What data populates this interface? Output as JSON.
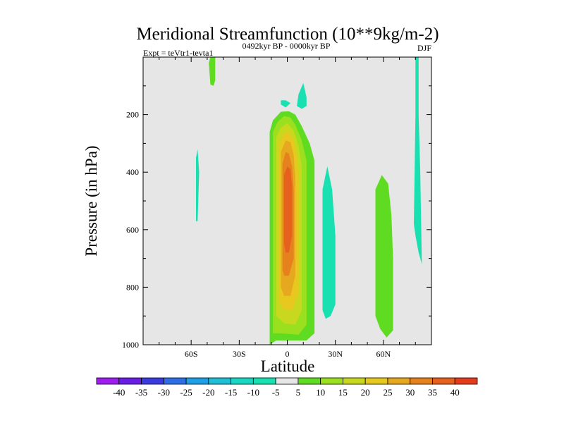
{
  "chart_data": {
    "type": "contour",
    "title": "Meridional Streamfunction (10**9kg/m-2)",
    "left_string": "Expt = teVtr1-tevta1",
    "center_string": "0492kyr BP - 0000kyr BP",
    "right_string": "DJF",
    "xlabel": "Latitude",
    "ylabel": "Pressure (in hPa)",
    "xlim": [
      -90,
      90
    ],
    "ylim": [
      1000,
      0
    ],
    "xticks": [
      {
        "value": -60,
        "label": "60S"
      },
      {
        "value": -30,
        "label": "30S"
      },
      {
        "value": 0,
        "label": "0"
      },
      {
        "value": 30,
        "label": "30N"
      },
      {
        "value": 60,
        "label": "60N"
      }
    ],
    "yticks": [
      {
        "value": 200,
        "label": "200"
      },
      {
        "value": 400,
        "label": "400"
      },
      {
        "value": 600,
        "label": "600"
      },
      {
        "value": 800,
        "label": "800"
      },
      {
        "value": 1000,
        "label": "1000"
      }
    ],
    "background_color": "#e6e6e6",
    "colorbar": {
      "labels": [
        "-40",
        "-35",
        "-30",
        "-25",
        "-20",
        "-15",
        "-10",
        "-5",
        "5",
        "10",
        "15",
        "20",
        "25",
        "30",
        "35",
        "40"
      ],
      "colors": [
        "#9e1ef0",
        "#6a1ee6",
        "#3b3be0",
        "#2f6fe6",
        "#1f9fe6",
        "#1fbfd6",
        "#19d7c2",
        "#19e0b0",
        "#e6e6e6",
        "#5fdc22",
        "#9be01f",
        "#c8d81e",
        "#e6c81e",
        "#e6a81e",
        "#e6821e",
        "#e6601e",
        "#e63c1e"
      ]
    },
    "regions": [
      {
        "name": "psi-positive-equatorial-cell",
        "level": 5,
        "color": "#5fdc22",
        "points": [
          [
            -11,
            1000
          ],
          [
            -11,
            260
          ],
          [
            -9,
            220
          ],
          [
            -4,
            190
          ],
          [
            1,
            188
          ],
          [
            5,
            200
          ],
          [
            9,
            240
          ],
          [
            14,
            300
          ],
          [
            17,
            360
          ],
          [
            17,
            960
          ],
          [
            12,
            985
          ],
          [
            -7,
            985
          ]
        ]
      },
      {
        "name": "psi-positive-equatorial-cell",
        "level": 10,
        "color": "#9be01f",
        "points": [
          [
            -9,
            960
          ],
          [
            -9,
            260
          ],
          [
            -6,
            225
          ],
          [
            -2,
            205
          ],
          [
            2,
            210
          ],
          [
            5,
            235
          ],
          [
            9,
            290
          ],
          [
            12,
            360
          ],
          [
            12,
            930
          ],
          [
            7,
            965
          ],
          [
            -4,
            960
          ]
        ]
      },
      {
        "name": "psi-positive-equatorial-cell",
        "level": 15,
        "color": "#c8d81e",
        "points": [
          [
            -7,
            900
          ],
          [
            -7,
            280
          ],
          [
            -4,
            245
          ],
          [
            0,
            230
          ],
          [
            4,
            255
          ],
          [
            7,
            310
          ],
          [
            9,
            380
          ],
          [
            9,
            880
          ],
          [
            5,
            930
          ],
          [
            -2,
            925
          ]
        ]
      },
      {
        "name": "psi-positive-equatorial-cell",
        "level": 20,
        "color": "#e6c81e",
        "points": [
          [
            -5,
            850
          ],
          [
            -5,
            300
          ],
          [
            -2,
            265
          ],
          [
            1,
            260
          ],
          [
            4,
            290
          ],
          [
            6,
            350
          ],
          [
            7,
            420
          ],
          [
            7,
            820
          ],
          [
            3,
            880
          ],
          [
            -2,
            880
          ]
        ]
      },
      {
        "name": "psi-positive-equatorial-cell",
        "level": 25,
        "color": "#e6a81e",
        "points": [
          [
            -4,
            800
          ],
          [
            -4,
            330
          ],
          [
            -1,
            290
          ],
          [
            2,
            295
          ],
          [
            4,
            340
          ],
          [
            5,
            420
          ],
          [
            5,
            760
          ],
          [
            2,
            830
          ],
          [
            -2,
            830
          ]
        ]
      },
      {
        "name": "psi-positive-equatorial-cell",
        "level": 30,
        "color": "#e6821e",
        "points": [
          [
            -3,
            740
          ],
          [
            -3,
            370
          ],
          [
            -1,
            330
          ],
          [
            1,
            335
          ],
          [
            3,
            380
          ],
          [
            4,
            460
          ],
          [
            4,
            700
          ],
          [
            1,
            760
          ],
          [
            -2,
            760
          ]
        ]
      },
      {
        "name": "psi-positive-equatorial-cell",
        "level": 35,
        "color": "#e6601e",
        "points": [
          [
            -2,
            650
          ],
          [
            -2,
            410
          ],
          [
            0,
            380
          ],
          [
            2,
            390
          ],
          [
            3,
            450
          ],
          [
            3,
            620
          ],
          [
            1,
            680
          ],
          [
            -1,
            680
          ]
        ]
      },
      {
        "name": "psi-positive-cell-60n",
        "level": 5,
        "color": "#5fdc22",
        "points": [
          [
            55,
            900
          ],
          [
            55,
            460
          ],
          [
            59,
            410
          ],
          [
            63,
            440
          ],
          [
            65,
            550
          ],
          [
            66,
            700
          ],
          [
            66,
            950
          ],
          [
            62,
            975
          ],
          [
            58,
            945
          ]
        ]
      },
      {
        "name": "psi-positive-cell-high-sh",
        "level": 5,
        "color": "#5fdc22",
        "points": [
          [
            -49,
            20
          ],
          [
            -48,
            0
          ],
          [
            -45,
            0
          ],
          [
            -45,
            80
          ],
          [
            -46,
            100
          ],
          [
            -48,
            95
          ]
        ]
      },
      {
        "name": "psi-negative-cell-30n",
        "level": -5,
        "color": "#19e0b0",
        "points": [
          [
            22,
            880
          ],
          [
            22,
            460
          ],
          [
            25,
            380
          ],
          [
            28,
            460
          ],
          [
            30,
            620
          ],
          [
            30,
            860
          ],
          [
            27,
            900
          ],
          [
            24,
            910
          ]
        ]
      },
      {
        "name": "psi-negative-cell-near-eq",
        "level": -5,
        "color": "#19e0b0",
        "points": [
          [
            6,
            170
          ],
          [
            7,
            130
          ],
          [
            10,
            90
          ],
          [
            12,
            140
          ],
          [
            12,
            170
          ],
          [
            9,
            180
          ]
        ]
      },
      {
        "name": "psi-negative-cell-near-eq-small",
        "level": -5,
        "color": "#19e0b0",
        "points": [
          [
            -4,
            150
          ],
          [
            -1,
            150
          ],
          [
            2,
            160
          ],
          [
            -1,
            175
          ],
          [
            -4,
            165
          ]
        ]
      },
      {
        "name": "psi-negative-cell-60s",
        "level": -5,
        "color": "#19e0b0",
        "points": [
          [
            -57,
            570
          ],
          [
            -57,
            350
          ],
          [
            -56,
            320
          ],
          [
            -55,
            400
          ],
          [
            -56,
            570
          ]
        ]
      },
      {
        "name": "psi-negative-cell-high-nh",
        "level": -5,
        "color": "#19e0b0",
        "points": [
          [
            79,
            580
          ],
          [
            80,
            200
          ],
          [
            80,
            0
          ],
          [
            82,
            0
          ],
          [
            82,
            200
          ],
          [
            83,
            400
          ],
          [
            84,
            720
          ],
          [
            82,
            680
          ],
          [
            80,
            620
          ]
        ]
      }
    ]
  }
}
